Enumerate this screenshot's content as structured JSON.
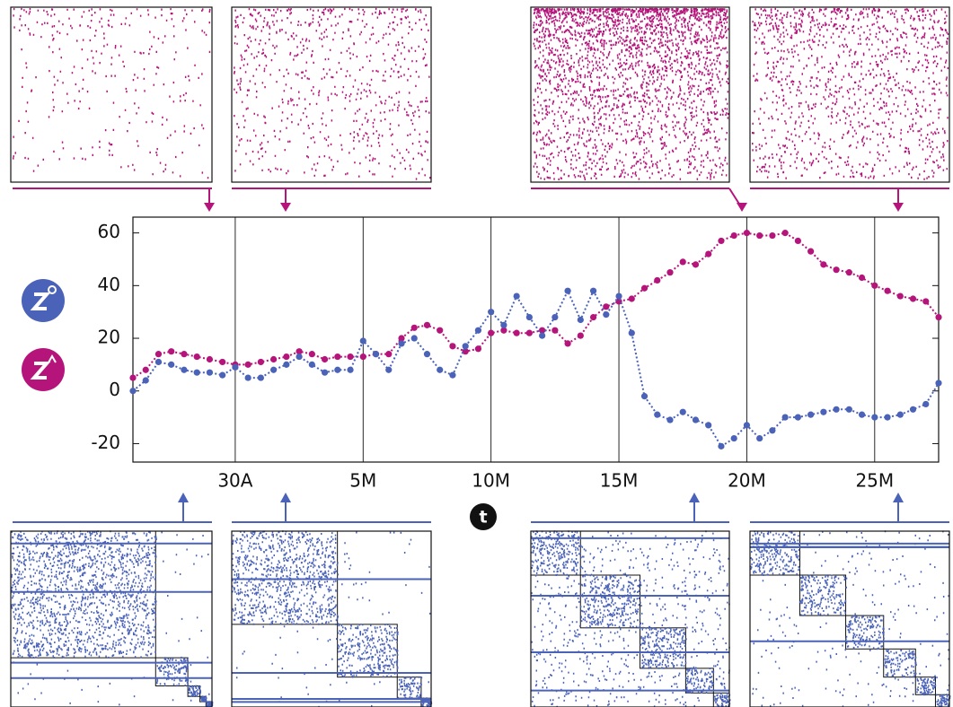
{
  "chart_data": {
    "type": "line",
    "x_label": "t",
    "x": [
      -4,
      -3.5,
      -3,
      -2.5,
      -2,
      -1.5,
      -1,
      -0.5,
      0,
      0.5,
      1,
      1.5,
      2,
      2.5,
      3,
      3.5,
      4,
      4.5,
      5,
      5.5,
      6,
      6.5,
      7,
      7.5,
      8,
      8.5,
      9,
      9.5,
      10,
      10.5,
      11,
      11.5,
      12,
      12.5,
      13,
      13.5,
      14,
      14.5,
      15,
      15.5,
      16,
      16.5,
      17,
      17.5,
      18,
      18.5,
      19,
      19.5,
      20,
      20.5,
      21,
      21.5,
      22,
      22.5,
      23,
      23.5,
      24,
      24.5,
      25,
      25.5,
      26,
      26.5,
      27,
      27.5
    ],
    "series": [
      {
        "color": "#b5157a",
        "values": [
          5,
          8,
          14,
          15,
          14,
          13,
          12,
          11,
          10,
          10,
          11,
          12,
          13,
          15,
          14,
          12,
          13,
          13,
          13,
          14,
          14,
          20,
          24,
          25,
          23,
          17,
          15,
          16,
          22,
          23,
          22,
          22,
          23,
          23,
          18,
          21,
          28,
          32,
          34,
          35,
          39,
          42,
          45,
          49,
          48,
          52,
          57,
          59,
          60,
          59,
          59,
          60,
          57,
          53,
          48,
          46,
          45,
          43,
          40,
          38,
          36,
          35,
          34,
          28
        ]
      },
      {
        "color": "#4a62b8",
        "values": [
          0,
          4,
          11,
          10,
          8,
          7,
          7,
          6,
          9,
          5,
          5,
          8,
          10,
          13,
          10,
          7,
          8,
          8,
          19,
          14,
          8,
          18,
          20,
          14,
          8,
          6,
          17,
          23,
          30,
          25,
          36,
          28,
          21,
          28,
          38,
          27,
          38,
          29,
          36,
          22,
          -2,
          -9,
          -11,
          -8,
          -11,
          -13,
          -21,
          -18,
          -13,
          -18,
          -15,
          -10,
          -10,
          -9,
          -8,
          -7,
          -7,
          -9,
          -10,
          -10,
          -9,
          -7,
          -5,
          3
        ]
      }
    ],
    "xlim": [
      -4,
      27.5
    ],
    "xticks": [
      {
        "value": 0,
        "label": "30A"
      },
      {
        "value": 5,
        "label": "5M"
      },
      {
        "value": 10,
        "label": "10M"
      },
      {
        "value": 15,
        "label": "15M"
      },
      {
        "value": 20,
        "label": "20M"
      },
      {
        "value": 25,
        "label": "25M"
      }
    ],
    "ylim": [
      -27,
      66
    ],
    "yticks": [
      -20,
      0,
      20,
      40,
      60
    ],
    "grid": "x"
  }
}
